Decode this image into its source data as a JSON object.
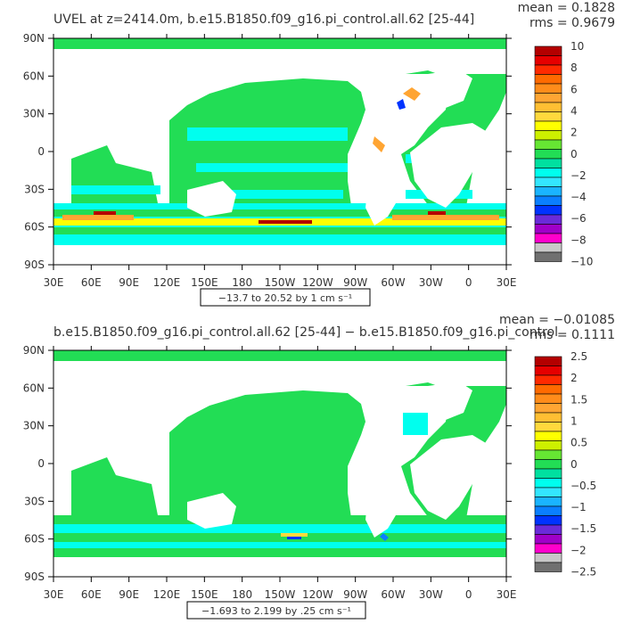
{
  "panels": [
    {
      "title": "UVEL at z=2414.0m, b.e15.B1850.f09_g16.pi_control.all.62 [25-44]",
      "stats": {
        "mean": "mean = 0.1828",
        "rms": "rms = 0.9679"
      },
      "range_label": "−13.7 to 20.52 by 1 cm s⁻¹",
      "colorbar": {
        "labels": [
          "10",
          "8",
          "6",
          "4",
          "2",
          "0",
          "−2",
          "−4",
          "−6",
          "−8",
          "−10"
        ],
        "colors": [
          "#b40000",
          "#e60000",
          "#ff2a00",
          "#ff6a00",
          "#ff8c1a",
          "#ffa533",
          "#ffbf33",
          "#ffd93d",
          "#ffff00",
          "#cdf000",
          "#66e633",
          "#22dd55",
          "#00e0a0",
          "#00ffee",
          "#33e6ff",
          "#1ab4ff",
          "#0a7fff",
          "#0033ff",
          "#6a2bd9",
          "#a000c8",
          "#ff00cc",
          "#c8c8c8",
          "#707070"
        ]
      },
      "map": {
        "land_fill": "#ffffff",
        "ocean_fill": "#33e67a",
        "x_ticks": [
          "30E",
          "60E",
          "90E",
          "120E",
          "150E",
          "180",
          "150W",
          "120W",
          "90W",
          "60W",
          "30W",
          "0",
          "30E"
        ],
        "y_ticks": [
          "90N",
          "60N",
          "30N",
          "0",
          "30S",
          "60S",
          "90S"
        ]
      }
    },
    {
      "title": "b.e15.B1850.f09_g16.pi_control.all.62 [25-44] − b.e15.B1850.f09_g16.pi_control",
      "stats": {
        "mean": "mean = −0.01085",
        "rms": "rms = 0.1111"
      },
      "range_label": "−1.693 to 2.199 by .25 cm s⁻¹",
      "colorbar": {
        "labels": [
          "2.5",
          "2",
          "1.5",
          "1",
          "0.5",
          "0",
          "−0.5",
          "−1",
          "−1.5",
          "−2",
          "−2.5"
        ],
        "colors": [
          "#b40000",
          "#e60000",
          "#ff2a00",
          "#ff6a00",
          "#ff8c1a",
          "#ffa533",
          "#ffbf33",
          "#ffd93d",
          "#ffff00",
          "#cdf000",
          "#66e633",
          "#22dd55",
          "#00e0a0",
          "#00ffee",
          "#33e6ff",
          "#1ab4ff",
          "#0a7fff",
          "#0033ff",
          "#6a2bd9",
          "#a000c8",
          "#ff00cc",
          "#c8c8c8",
          "#707070"
        ]
      },
      "map": {
        "land_fill": "#ffffff",
        "ocean_fill": "#33e67a",
        "x_ticks": [
          "30E",
          "60E",
          "90E",
          "120E",
          "150E",
          "180",
          "150W",
          "120W",
          "90W",
          "60W",
          "30W",
          "0",
          "30E"
        ],
        "y_ticks": [
          "90N",
          "60N",
          "30N",
          "0",
          "30S",
          "60S",
          "90S"
        ]
      }
    }
  ]
}
